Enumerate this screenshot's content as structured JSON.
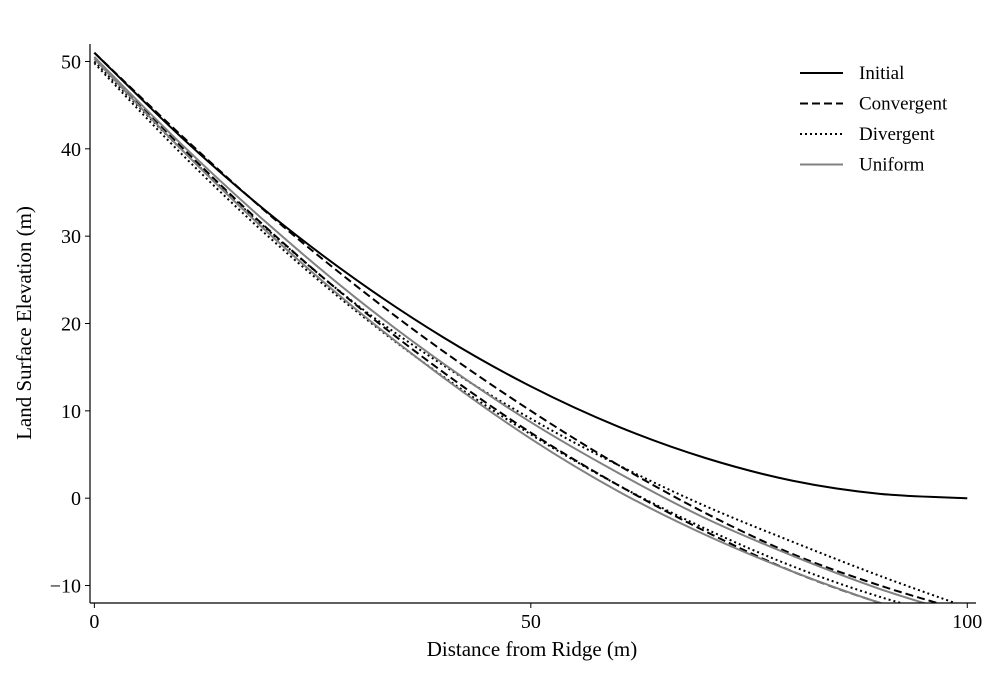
{
  "chart_data": {
    "type": "line",
    "title": "",
    "xlabel": "Distance from Ridge (m)",
    "ylabel": "Land Surface Elevation (m)",
    "xlim": [
      -0.5,
      101
    ],
    "ylim": [
      -12,
      52
    ],
    "xticks": [
      0,
      50,
      100
    ],
    "yticks": [
      -10,
      0,
      10,
      20,
      30,
      40,
      50
    ],
    "grid": false,
    "legend_position": "top-right",
    "x": [
      0,
      10,
      20,
      30,
      40,
      50,
      60,
      70,
      80,
      90,
      100
    ],
    "series": [
      {
        "name": "Initial",
        "style": "solid",
        "color": "#000000",
        "curves": [
          [
            51,
            41.3,
            32.6,
            25,
            18.4,
            12.8,
            8.2,
            4.6,
            2,
            0.5,
            0
          ]
        ]
      },
      {
        "name": "Convergent",
        "style": "dashed",
        "color": "#000000",
        "curves": [
          [
            51,
            41.5,
            32.5,
            24.3,
            16.8,
            10,
            3.8,
            -1.7,
            -6.4,
            -10,
            -13
          ],
          [
            50.5,
            40.2,
            30.7,
            22.1,
            14.4,
            7.5,
            1.5,
            -3.8,
            -8.4,
            -12,
            -15
          ]
        ]
      },
      {
        "name": "Divergent",
        "style": "dotted",
        "color": "#000000",
        "curves": [
          [
            50,
            39.9,
            30.6,
            22.2,
            15.2,
            9.1,
            3.8,
            -0.9,
            -5,
            -8.9,
            -12.5
          ],
          [
            49.8,
            39.4,
            29.9,
            21.4,
            13.9,
            7.3,
            1.5,
            -3.5,
            -7.8,
            -11.3,
            -14
          ]
        ]
      },
      {
        "name": "Uniform",
        "style": "solid",
        "color": "#808080",
        "curves": [
          [
            50.5,
            40.5,
            31.3,
            22.9,
            15.4,
            8.7,
            2.9,
            -2.3,
            -6.6,
            -10.4,
            -13.5
          ],
          [
            50.3,
            39.9,
            30.3,
            21.6,
            13.8,
            6.8,
            0.8,
            -4.2,
            -8.4,
            -12,
            -15
          ]
        ]
      }
    ]
  }
}
